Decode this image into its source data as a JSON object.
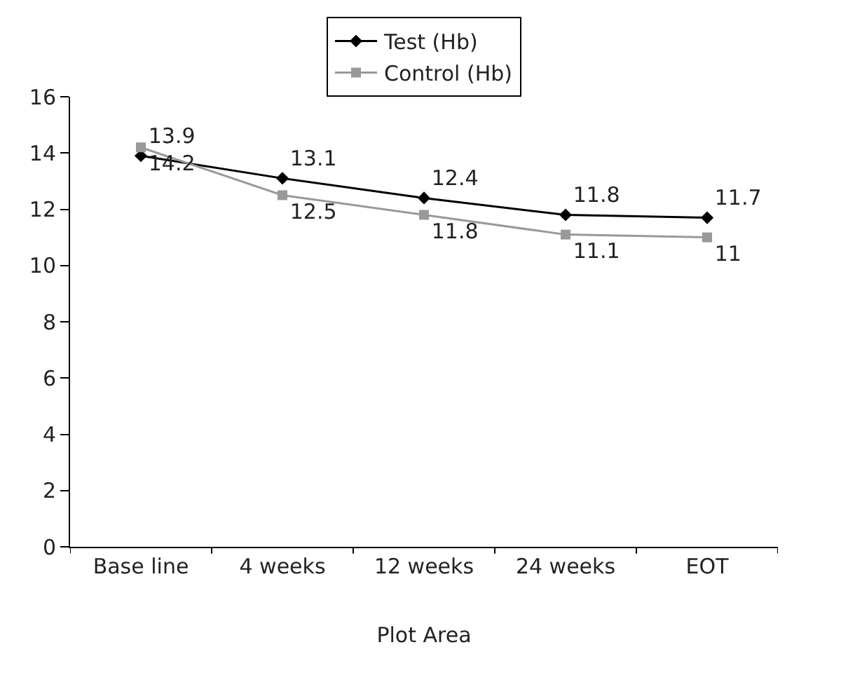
{
  "chart_data": {
    "type": "line",
    "xlabel": "Plot Area",
    "categories": [
      "Base line",
      "4 weeks",
      "12 weeks",
      "24 weeks",
      "EOT"
    ],
    "series": [
      {
        "name": "Test (Hb)",
        "color": "#000000",
        "marker": "diamond",
        "values": [
          13.9,
          13.1,
          12.4,
          11.8,
          11.7
        ]
      },
      {
        "name": "Control (Hb)",
        "color": "#999999",
        "marker": "square",
        "values": [
          14.2,
          12.5,
          11.8,
          11.1,
          11
        ]
      }
    ],
    "ylim": [
      0,
      16
    ],
    "yticks": [
      0,
      2,
      4,
      6,
      8,
      10,
      12,
      14,
      16
    ],
    "legend": "top",
    "data_labels": true,
    "line_style": "solid"
  }
}
